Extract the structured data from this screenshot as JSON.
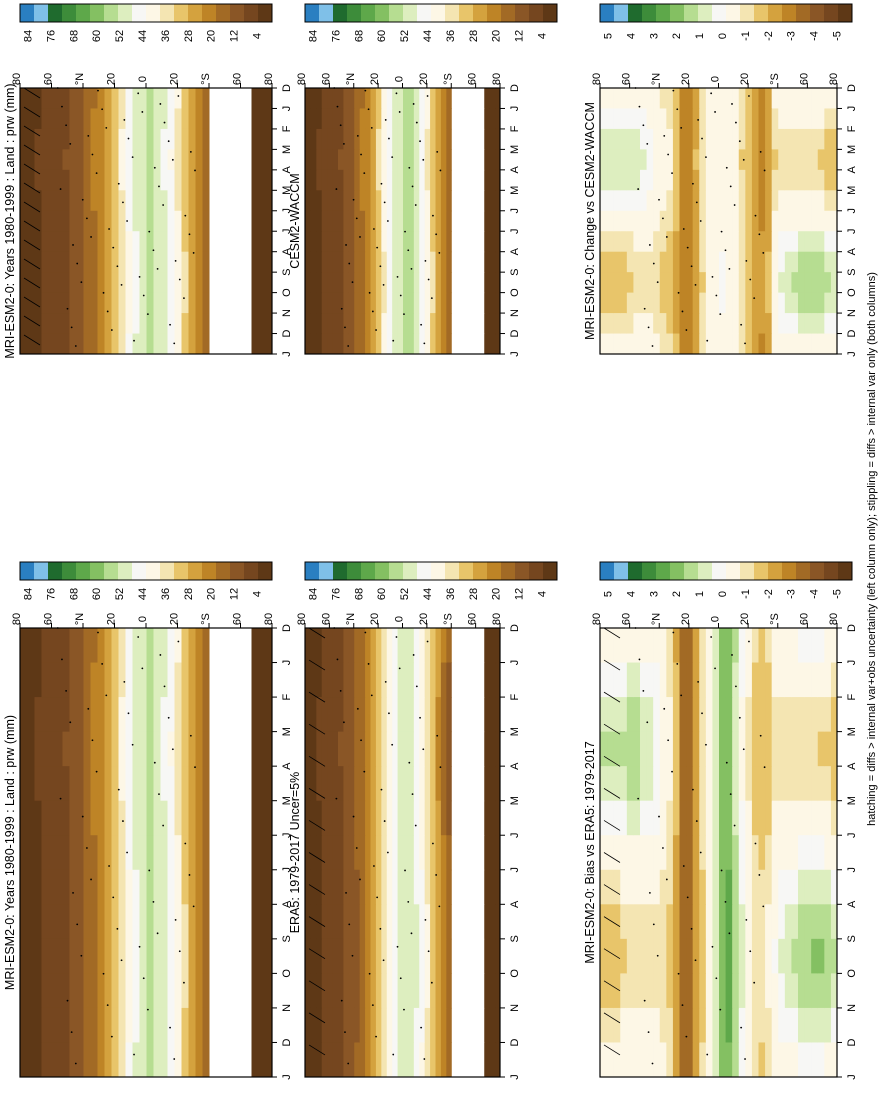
{
  "footer_note": "hatching = diffs > internal var+obs uncertainty (left column only); stippling = diffs > internal var only (both columns)",
  "colors": {
    "abs_scale": [
      "#2a7fc1",
      "#7fc0e8",
      "#1f6b2e",
      "#3d8c3a",
      "#5ea84a",
      "#84c062",
      "#b6dd91",
      "#ddeebf",
      "#f7f7f5",
      "#fdf7e6",
      "#f4e5b2",
      "#e8c56a",
      "#d4a23e",
      "#be8426",
      "#a26a25",
      "#8a5626",
      "#75461f",
      "#5e3816"
    ],
    "diff_scale": [
      "#2a7fc1",
      "#7fc0e8",
      "#1f6b2e",
      "#3d8c3a",
      "#5ea84a",
      "#84c062",
      "#b6dd91",
      "#ddeebf",
      "#f7f7f5",
      "#fdf7e6",
      "#f4e5b2",
      "#e8c56a",
      "#d4a23e",
      "#be8426",
      "#a26a25",
      "#8a5626",
      "#75461f",
      "#5e3816"
    ],
    "missing": "#ffffff"
  },
  "chart_data": [
    {
      "type": "heatmap",
      "title": "MRI-ESM2-0: Years 1980-1999 : Land : prw (mm)",
      "x_ticklabels": [
        "D",
        "J",
        "F",
        "M",
        "A",
        "M",
        "J",
        "J",
        "A",
        "S",
        "O",
        "N",
        "D",
        "J"
      ],
      "y_ticklabels": [
        "80",
        "60",
        "°N",
        "20",
        "0",
        "20",
        "°S",
        "60",
        "80"
      ],
      "ylim": [
        -90,
        90
      ],
      "colorbar_labels": [
        "84",
        "76",
        "68",
        "60",
        "52",
        "44",
        "36",
        "28",
        "20",
        "12",
        "4"
      ],
      "hatching": true,
      "stippling": true,
      "z_profile": [
        [
          -85,
          0.8
        ],
        [
          -75,
          1.2
        ],
        [
          -62,
          null
        ],
        [
          -45,
          11
        ],
        [
          -35,
          19
        ],
        [
          -25,
          30
        ],
        [
          -15,
          39
        ],
        [
          -5,
          45
        ],
        [
          5,
          42
        ],
        [
          15,
          34
        ],
        [
          25,
          24
        ],
        [
          35,
          17
        ],
        [
          45,
          12
        ],
        [
          55,
          8
        ],
        [
          65,
          6
        ],
        [
          75,
          4
        ],
        [
          85,
          3
        ]
      ]
    },
    {
      "type": "heatmap",
      "title": "MRI-ESM2-0: Years 1980-1999 : Land : prw (mm)",
      "x_ticklabels": [
        "D",
        "J",
        "F",
        "M",
        "A",
        "M",
        "J",
        "J",
        "A",
        "S",
        "O",
        "N",
        "D",
        "J"
      ],
      "y_ticklabels": [
        "80",
        "60",
        "°N",
        "20",
        "0",
        "20",
        "°S",
        "60",
        "80"
      ],
      "ylim": [
        -90,
        90
      ],
      "colorbar_labels": [
        "84",
        "76",
        "68",
        "60",
        "52",
        "44",
        "36",
        "28",
        "20",
        "12",
        "4"
      ],
      "hatching": false,
      "stippling": true,
      "z_profile": [
        [
          -85,
          0.8
        ],
        [
          -75,
          1.2
        ],
        [
          -62,
          null
        ],
        [
          -45,
          11
        ],
        [
          -35,
          19
        ],
        [
          -25,
          30
        ],
        [
          -15,
          39
        ],
        [
          -5,
          45
        ],
        [
          5,
          42
        ],
        [
          15,
          34
        ],
        [
          25,
          24
        ],
        [
          35,
          17
        ],
        [
          45,
          12
        ],
        [
          55,
          8
        ],
        [
          65,
          6
        ],
        [
          75,
          4
        ],
        [
          85,
          3
        ]
      ]
    },
    {
      "type": "heatmap",
      "title": "ERA5: 1979-2017 Uncer=5%",
      "x_ticklabels": [
        "D",
        "J",
        "F",
        "M",
        "A",
        "M",
        "J",
        "J",
        "A",
        "S",
        "O",
        "N",
        "D",
        "J"
      ],
      "y_ticklabels": [
        "80",
        "60",
        "°N",
        "20",
        "0",
        "20",
        "°S",
        "60",
        "80"
      ],
      "ylim": [
        -90,
        90
      ],
      "colorbar_labels": [
        "84",
        "76",
        "68",
        "60",
        "52",
        "44",
        "36",
        "28",
        "20",
        "12",
        "4"
      ],
      "hatching": true,
      "stippling": true,
      "z_profile": [
        [
          -85,
          0.8
        ],
        [
          -75,
          1.2
        ],
        [
          -62,
          null
        ],
        [
          -45,
          10
        ],
        [
          -35,
          18
        ],
        [
          -25,
          29
        ],
        [
          -15,
          38
        ],
        [
          -5,
          44
        ],
        [
          5,
          41
        ],
        [
          15,
          33
        ],
        [
          25,
          23
        ],
        [
          35,
          16
        ],
        [
          45,
          11
        ],
        [
          55,
          8
        ],
        [
          65,
          6
        ],
        [
          75,
          4
        ],
        [
          85,
          3
        ]
      ]
    },
    {
      "type": "heatmap",
      "title": "CESM2-WACCM",
      "x_ticklabels": [
        "D",
        "J",
        "F",
        "M",
        "A",
        "M",
        "J",
        "J",
        "A",
        "S",
        "O",
        "N",
        "D",
        "J"
      ],
      "y_ticklabels": [
        "80",
        "60",
        "°N",
        "20",
        "0",
        "20",
        "°S",
        "60",
        "80"
      ],
      "ylim": [
        -90,
        90
      ],
      "colorbar_labels": [
        "84",
        "76",
        "68",
        "60",
        "52",
        "44",
        "36",
        "28",
        "20",
        "12",
        "4"
      ],
      "hatching": false,
      "stippling": true,
      "z_profile": [
        [
          -85,
          0.8
        ],
        [
          -75,
          1.2
        ],
        [
          -62,
          null
        ],
        [
          -45,
          11
        ],
        [
          -35,
          19
        ],
        [
          -25,
          30
        ],
        [
          -15,
          40
        ],
        [
          -5,
          46
        ],
        [
          5,
          43
        ],
        [
          15,
          35
        ],
        [
          25,
          25
        ],
        [
          35,
          17
        ],
        [
          45,
          12
        ],
        [
          55,
          8
        ],
        [
          65,
          6
        ],
        [
          75,
          4
        ],
        [
          85,
          3
        ]
      ]
    },
    {
      "type": "heatmap",
      "title": "MRI-ESM2-0: Bias vs ERA5: 1979-2017",
      "x_ticklabels": [
        "D",
        "J",
        "F",
        "M",
        "A",
        "M",
        "J",
        "J",
        "A",
        "S",
        "O",
        "N",
        "D",
        "J"
      ],
      "y_ticklabels": [
        "80",
        "60",
        "°N",
        "20",
        "0",
        "20",
        "°S",
        "60",
        "80"
      ],
      "ylim": [
        -90,
        90
      ],
      "colorbar_labels": [
        "5",
        "4",
        "3",
        "2",
        "1",
        "0",
        "-1",
        "-2",
        "-3",
        "-4",
        "-5"
      ],
      "hatching": true,
      "stippling": true,
      "z_profile": [
        [
          -85,
          0.3
        ],
        [
          -75,
          0.6
        ],
        [
          -62,
          0.5
        ],
        [
          -45,
          0.2
        ],
        [
          -35,
          -1.2
        ],
        [
          -25,
          -0.8
        ],
        [
          -15,
          1.2
        ],
        [
          -5,
          2.8
        ],
        [
          5,
          0.6
        ],
        [
          15,
          -1.5
        ],
        [
          25,
          -3.2
        ],
        [
          35,
          -1.0
        ],
        [
          45,
          0.1
        ],
        [
          55,
          0.3
        ],
        [
          65,
          0.5
        ],
        [
          75,
          0.2
        ],
        [
          85,
          0.1
        ]
      ]
    },
    {
      "type": "heatmap",
      "title": "MRI-ESM2-0: Change vs CESM2-WACCM",
      "x_ticklabels": [
        "D",
        "J",
        "F",
        "M",
        "A",
        "M",
        "J",
        "J",
        "A",
        "S",
        "O",
        "N",
        "D",
        "J"
      ],
      "y_ticklabels": [
        "80",
        "60",
        "°N",
        "20",
        "0",
        "20",
        "°S",
        "60",
        "80"
      ],
      "ylim": [
        -90,
        90
      ],
      "colorbar_labels": [
        "5",
        "4",
        "3",
        "2",
        "1",
        "0",
        "-1",
        "-2",
        "-3",
        "-4",
        "-5"
      ],
      "hatching": false,
      "stippling": true,
      "z_profile": [
        [
          -85,
          0.0
        ],
        [
          -75,
          0.4
        ],
        [
          -62,
          0.5
        ],
        [
          -45,
          0.1
        ],
        [
          -35,
          -2.2
        ],
        [
          -25,
          -1.5
        ],
        [
          -15,
          -0.6
        ],
        [
          -5,
          0.6
        ],
        [
          5,
          0.1
        ],
        [
          15,
          -1.2
        ],
        [
          25,
          -2.8
        ],
        [
          35,
          -1.0
        ],
        [
          45,
          -0.4
        ],
        [
          55,
          0.1
        ],
        [
          65,
          0.1
        ],
        [
          75,
          0.0
        ],
        [
          85,
          0.0
        ]
      ]
    }
  ]
}
